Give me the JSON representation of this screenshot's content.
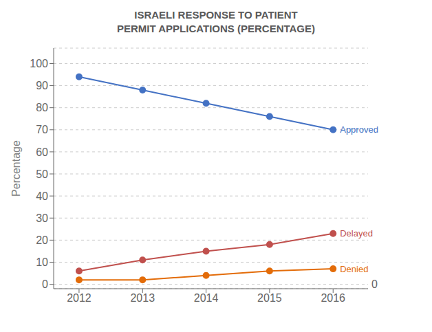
{
  "chart_data": {
    "type": "line",
    "title": "ISRAELI RESPONSE TO PATIENT\nPERMIT APPLICATIONS (PERCENTAGE)",
    "y_label": "Percentage",
    "x": [
      2012,
      2013,
      2014,
      2015,
      2016
    ],
    "xlim": [
      2011.6,
      2016.55
    ],
    "xticks": [
      2012,
      2013,
      2014,
      2015,
      2016
    ],
    "ylim": [
      -2,
      107
    ],
    "yticks": [
      0,
      10,
      20,
      30,
      40,
      50,
      60,
      70,
      80,
      90,
      100
    ],
    "grid": true,
    "marker": "circle",
    "series": [
      {
        "name": "Approved",
        "color": "#4472C4",
        "values": [
          94,
          88,
          82,
          76,
          70
        ]
      },
      {
        "name": "Delayed",
        "color": "#C0504D",
        "values": [
          6,
          11,
          15,
          18,
          23
        ]
      },
      {
        "name": "Denied",
        "color": "#E36C09",
        "values": [
          2,
          2,
          4,
          6,
          7
        ]
      }
    ],
    "annotations": [
      {
        "text": "0",
        "y": 0
      }
    ]
  }
}
